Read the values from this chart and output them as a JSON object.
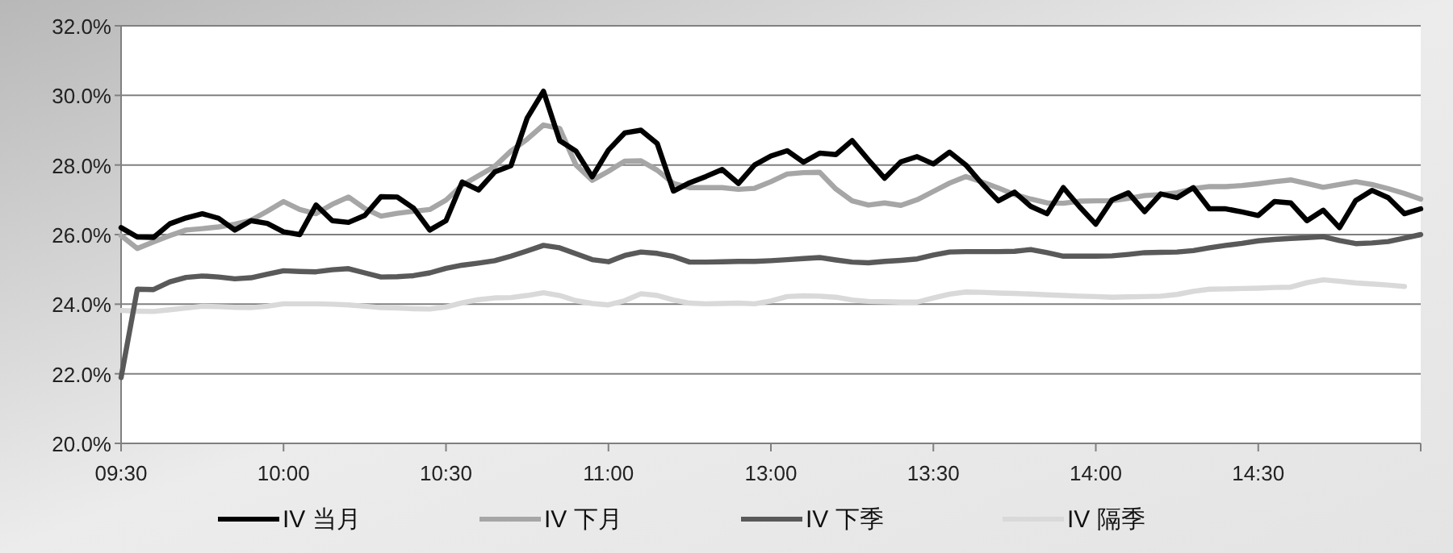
{
  "chart_data": {
    "type": "line",
    "legend": "bottom",
    "grid": "y",
    "marker": "none",
    "line_style": "solid",
    "categories": [
      "09:30",
      null,
      null,
      null,
      null,
      null,
      null,
      null,
      null,
      null,
      "10:00",
      null,
      null,
      null,
      null,
      null,
      null,
      null,
      null,
      null,
      "10:30",
      null,
      null,
      null,
      null,
      null,
      null,
      null,
      null,
      null,
      "11:00",
      null,
      null,
      null,
      null,
      null,
      null,
      null,
      null,
      null,
      "13:00",
      null,
      null,
      null,
      null,
      null,
      null,
      null,
      null,
      null,
      "13:30",
      null,
      null,
      null,
      null,
      null,
      null,
      null,
      null,
      null,
      "14:00",
      null,
      null,
      null,
      null,
      null,
      null,
      null,
      null,
      null,
      "14:30",
      null,
      null,
      null,
      null,
      null,
      null,
      null,
      null,
      null,
      null
    ],
    "ylim": [
      20,
      32
    ],
    "yticks": [
      {
        "value": 20,
        "label": "20.0%"
      },
      {
        "value": 22,
        "label": "22.0%"
      },
      {
        "value": 24,
        "label": "24.0%"
      },
      {
        "value": 26,
        "label": "26.0%"
      },
      {
        "value": 28,
        "label": "28.0%"
      },
      {
        "value": 30,
        "label": "30.0%"
      },
      {
        "value": 32,
        "label": "32.0%"
      }
    ],
    "series": [
      {
        "name": "IV 当月",
        "color": "#000000",
        "values": [
          26.2,
          25.93,
          25.92,
          26.31,
          26.48,
          26.6,
          26.47,
          26.13,
          26.4,
          26.32,
          26.08,
          26.0,
          26.85,
          26.4,
          26.35,
          26.55,
          27.09,
          27.08,
          26.76,
          26.13,
          26.4,
          27.51,
          27.28,
          27.8,
          27.98,
          29.35,
          30.12,
          28.7,
          28.4,
          27.66,
          28.43,
          28.92,
          29.0,
          28.62,
          27.25,
          27.49,
          27.67,
          27.87,
          27.47,
          28.0,
          28.26,
          28.41,
          28.08,
          28.34,
          28.3,
          28.7,
          28.15,
          27.62,
          28.09,
          28.24,
          28.03,
          28.37,
          28.0,
          27.46,
          26.97,
          27.22,
          26.81,
          26.6,
          27.35,
          26.8,
          26.3,
          27.0,
          27.2,
          26.66,
          27.17,
          27.06,
          27.35,
          26.74,
          26.74,
          26.65,
          26.55,
          26.95,
          26.91,
          26.4,
          26.7,
          26.2,
          26.98,
          27.27,
          27.06,
          26.6,
          26.74
        ]
      },
      {
        "name": "IV 下月",
        "color": "#a6a6a6",
        "values": [
          25.97,
          25.6,
          25.79,
          25.97,
          26.13,
          26.17,
          26.22,
          26.3,
          26.41,
          26.67,
          26.95,
          26.72,
          26.6,
          26.87,
          27.08,
          26.75,
          26.53,
          26.61,
          26.67,
          26.72,
          26.99,
          27.42,
          27.69,
          27.96,
          28.4,
          28.74,
          29.15,
          29.05,
          28.0,
          27.56,
          27.82,
          28.11,
          28.12,
          27.85,
          27.47,
          27.35,
          27.35,
          27.35,
          27.3,
          27.33,
          27.52,
          27.74,
          27.78,
          27.79,
          27.31,
          26.97,
          26.85,
          26.91,
          26.84,
          27.0,
          27.24,
          27.48,
          27.67,
          27.51,
          27.34,
          27.15,
          27.02,
          26.91,
          26.9,
          26.96,
          26.97,
          26.97,
          27.04,
          27.12,
          27.15,
          27.2,
          27.32,
          27.38,
          27.38,
          27.41,
          27.46,
          27.52,
          27.57,
          27.47,
          27.36,
          27.44,
          27.52,
          27.44,
          27.32,
          27.18,
          27.02
        ]
      },
      {
        "name": "IV 下季",
        "color": "#595959",
        "values": [
          21.89,
          24.43,
          24.42,
          24.64,
          24.77,
          24.81,
          24.78,
          24.73,
          24.76,
          24.86,
          24.96,
          24.94,
          24.93,
          24.99,
          25.02,
          24.9,
          24.78,
          24.79,
          24.82,
          24.9,
          25.03,
          25.12,
          25.18,
          25.25,
          25.38,
          25.53,
          25.69,
          25.62,
          25.45,
          25.28,
          25.22,
          25.4,
          25.5,
          25.46,
          25.37,
          25.21,
          25.21,
          25.22,
          25.23,
          25.23,
          25.25,
          25.28,
          25.31,
          25.34,
          25.27,
          25.21,
          25.19,
          25.23,
          25.26,
          25.3,
          25.41,
          25.5,
          25.51,
          25.51,
          25.51,
          25.52,
          25.57,
          25.48,
          25.38,
          25.38,
          25.38,
          25.39,
          25.43,
          25.48,
          25.49,
          25.5,
          25.54,
          25.62,
          25.69,
          25.75,
          25.82,
          25.86,
          25.89,
          25.91,
          25.94,
          25.83,
          25.74,
          25.76,
          25.8,
          25.9,
          26.0
        ]
      },
      {
        "name": "IV 隔季",
        "color": "#d9d9d9",
        "values": [
          23.82,
          23.8,
          23.79,
          23.84,
          23.89,
          23.94,
          23.93,
          23.91,
          23.9,
          23.94,
          24.01,
          24.01,
          24.01,
          24.0,
          23.98,
          23.94,
          23.9,
          23.89,
          23.87,
          23.86,
          23.92,
          24.04,
          24.13,
          24.18,
          24.19,
          24.25,
          24.33,
          24.25,
          24.1,
          24.02,
          23.98,
          24.1,
          24.3,
          24.25,
          24.12,
          24.03,
          24.01,
          24.02,
          24.03,
          24.01,
          24.09,
          24.22,
          24.24,
          24.23,
          24.2,
          24.12,
          24.08,
          24.07,
          24.06,
          24.06,
          24.18,
          24.29,
          24.35,
          24.34,
          24.32,
          24.31,
          24.29,
          24.27,
          24.25,
          24.23,
          24.22,
          24.2,
          24.21,
          24.22,
          24.23,
          24.28,
          24.37,
          24.43,
          24.44,
          24.45,
          24.46,
          24.48,
          24.49,
          24.62,
          24.7,
          24.66,
          24.61,
          24.58,
          24.55,
          24.51,
          null
        ]
      }
    ]
  }
}
